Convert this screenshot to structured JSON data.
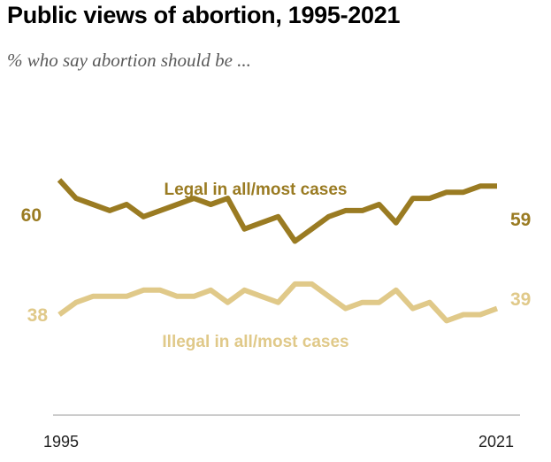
{
  "title": "Public views of abortion, 1995-2021",
  "subtitle": "% who say abortion should be ...",
  "chart_data": {
    "type": "line",
    "x": [
      1995,
      1996,
      1997,
      1998,
      1999,
      2000,
      2001,
      2002,
      2003,
      2004,
      2005,
      2006,
      2007,
      2008,
      2009,
      2010,
      2011,
      2012,
      2013,
      2014,
      2015,
      2016,
      2017,
      2018,
      2019,
      2020,
      2021
    ],
    "xlim": [
      1995,
      2021
    ],
    "x_tick_labels": [
      "1995",
      "2021"
    ],
    "ylim": [
      20,
      80
    ],
    "grid": false,
    "legend": "direct labels",
    "series": [
      {
        "name": "Legal in all/most cases",
        "color": "#9a7b22",
        "values": [
          60,
          57,
          56,
          55,
          56,
          54,
          55,
          56,
          57,
          56,
          57,
          52,
          53,
          54,
          50,
          52,
          54,
          55,
          55,
          56,
          53,
          57,
          57,
          58,
          58,
          59,
          59
        ],
        "start_label": "60",
        "end_label": "59"
      },
      {
        "name": "Illegal in all/most cases",
        "color": "#e0c989",
        "values": [
          38,
          40,
          41,
          41,
          41,
          42,
          42,
          41,
          41,
          42,
          40,
          42,
          41,
          40,
          43,
          43,
          41,
          39,
          40,
          40,
          42,
          39,
          40,
          37,
          38,
          38,
          39
        ],
        "start_label": "38",
        "end_label": "39"
      }
    ]
  }
}
